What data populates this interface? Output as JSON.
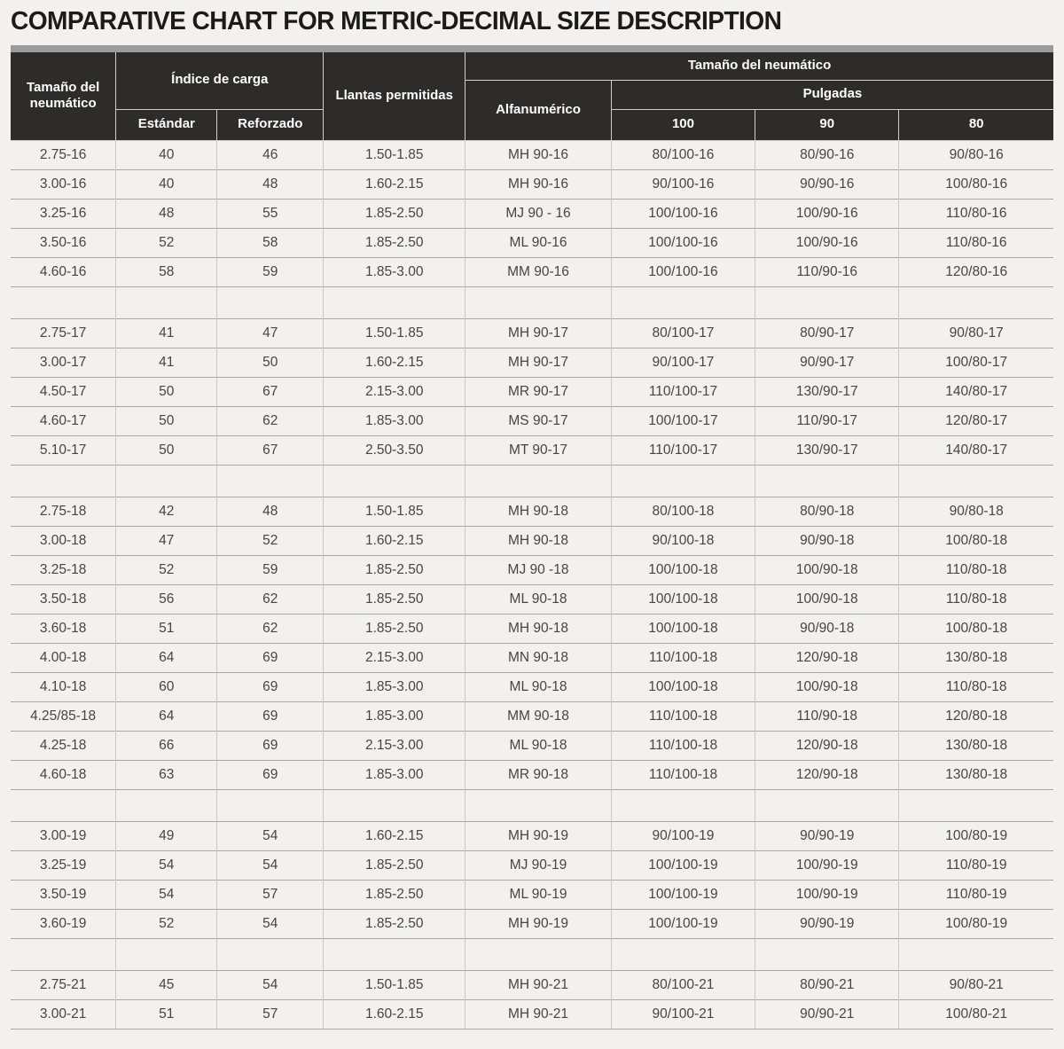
{
  "title": "COMPARATIVE CHART FOR METRIC-DECIMAL SIZE DESCRIPTION",
  "colors": {
    "page_bg": "#f2f1ef",
    "header_bg": "#2e2b2b",
    "header_text": "#ffffff",
    "top_strip": "#9b9b9b",
    "row_line": "#a8a8a8",
    "column_line": "#c8c8c8",
    "body_text": "#454545",
    "title_text": "#1b1b1b"
  },
  "table": {
    "header": {
      "col_tire_size": "Tamaño del neumático",
      "col_load_index": "Índice de carga",
      "col_standard": "Estándar",
      "col_reinforced": "Reforzado",
      "col_rims": "Llantas permitidas",
      "col_tire_size_right": "Tamaño del neumático",
      "col_alphanumeric": "Alfanumérico",
      "col_inches": "Pulgadas",
      "col_100": "100",
      "col_90": "90",
      "col_80": "80"
    }
  },
  "chart_data": {
    "type": "table",
    "title": "COMPARATIVE CHART FOR METRIC-DECIMAL SIZE DESCRIPTION",
    "columns": [
      "Tamaño del neumático",
      "Índice de carga — Estándar",
      "Índice de carga — Reforzado",
      "Llantas permitidas",
      "Tamaño del neumático — Alfanumérico",
      "Tamaño del neumático — Pulgadas — 100",
      "Tamaño del neumático — Pulgadas — 90",
      "Tamaño del neumático — Pulgadas — 80"
    ],
    "groups": [
      {
        "rim": "16",
        "rows": [
          [
            "2.75-16",
            "40",
            "46",
            "1.50-1.85",
            "MH 90-16",
            "80/100-16",
            "80/90-16",
            "90/80-16"
          ],
          [
            "3.00-16",
            "40",
            "48",
            "1.60-2.15",
            "MH 90-16",
            "90/100-16",
            "90/90-16",
            "100/80-16"
          ],
          [
            "3.25-16",
            "48",
            "55",
            "1.85-2.50",
            "MJ 90 - 16",
            "100/100-16",
            "100/90-16",
            "110/80-16"
          ],
          [
            "3.50-16",
            "52",
            "58",
            "1.85-2.50",
            "ML 90-16",
            "100/100-16",
            "100/90-16",
            "110/80-16"
          ],
          [
            "4.60-16",
            "58",
            "59",
            "1.85-3.00",
            "MM 90-16",
            "100/100-16",
            "110/90-16",
            "120/80-16"
          ]
        ]
      },
      {
        "rim": "17",
        "rows": [
          [
            "2.75-17",
            "41",
            "47",
            "1.50-1.85",
            "MH 90-17",
            "80/100-17",
            "80/90-17",
            "90/80-17"
          ],
          [
            "3.00-17",
            "41",
            "50",
            "1.60-2.15",
            "MH 90-17",
            "90/100-17",
            "90/90-17",
            "100/80-17"
          ],
          [
            "4.50-17",
            "50",
            "67",
            "2.15-3.00",
            "MR 90-17",
            "110/100-17",
            "130/90-17",
            "140/80-17"
          ],
          [
            "4.60-17",
            "50",
            "62",
            "1.85-3.00",
            "MS 90-17",
            "100/100-17",
            "110/90-17",
            "120/80-17"
          ],
          [
            "5.10-17",
            "50",
            "67",
            "2.50-3.50",
            "MT 90-17",
            "110/100-17",
            "130/90-17",
            "140/80-17"
          ]
        ]
      },
      {
        "rim": "18",
        "rows": [
          [
            "2.75-18",
            "42",
            "48",
            "1.50-1.85",
            "MH 90-18",
            "80/100-18",
            "80/90-18",
            "90/80-18"
          ],
          [
            "3.00-18",
            "47",
            "52",
            "1.60-2.15",
            "MH 90-18",
            "90/100-18",
            "90/90-18",
            "100/80-18"
          ],
          [
            "3.25-18",
            "52",
            "59",
            "1.85-2.50",
            "MJ 90 -18",
            "100/100-18",
            "100/90-18",
            "110/80-18"
          ],
          [
            "3.50-18",
            "56",
            "62",
            "1.85-2.50",
            "ML 90-18",
            "100/100-18",
            "100/90-18",
            "110/80-18"
          ],
          [
            "3.60-18",
            "51",
            "62",
            "1.85-2.50",
            "MH 90-18",
            "100/100-18",
            "90/90-18",
            "100/80-18"
          ],
          [
            "4.00-18",
            "64",
            "69",
            "2.15-3.00",
            "MN 90-18",
            "110/100-18",
            "120/90-18",
            "130/80-18"
          ],
          [
            "4.10-18",
            "60",
            "69",
            "1.85-3.00",
            "ML 90-18",
            "100/100-18",
            "100/90-18",
            "110/80-18"
          ],
          [
            "4.25/85-18",
            "64",
            "69",
            "1.85-3.00",
            "MM 90-18",
            "110/100-18",
            "110/90-18",
            "120/80-18"
          ],
          [
            "4.25-18",
            "66",
            "69",
            "2.15-3.00",
            "ML 90-18",
            "110/100-18",
            "120/90-18",
            "130/80-18"
          ],
          [
            "4.60-18",
            "63",
            "69",
            "1.85-3.00",
            "MR 90-18",
            "110/100-18",
            "120/90-18",
            "130/80-18"
          ]
        ]
      },
      {
        "rim": "19",
        "rows": [
          [
            "3.00-19",
            "49",
            "54",
            "1.60-2.15",
            "MH 90-19",
            "90/100-19",
            "90/90-19",
            "100/80-19"
          ],
          [
            "3.25-19",
            "54",
            "54",
            "1.85-2.50",
            "MJ 90-19",
            "100/100-19",
            "100/90-19",
            "110/80-19"
          ],
          [
            "3.50-19",
            "54",
            "57",
            "1.85-2.50",
            "ML 90-19",
            "100/100-19",
            "100/90-19",
            "110/80-19"
          ],
          [
            "3.60-19",
            "52",
            "54",
            "1.85-2.50",
            "MH 90-19",
            "100/100-19",
            "90/90-19",
            "100/80-19"
          ]
        ]
      },
      {
        "rim": "21",
        "rows": [
          [
            "2.75-21",
            "45",
            "54",
            "1.50-1.85",
            "MH 90-21",
            "80/100-21",
            "80/90-21",
            "90/80-21"
          ],
          [
            "3.00-21",
            "51",
            "57",
            "1.60-2.15",
            "MH 90-21",
            "90/100-21",
            "90/90-21",
            "100/80-21"
          ]
        ]
      }
    ]
  }
}
